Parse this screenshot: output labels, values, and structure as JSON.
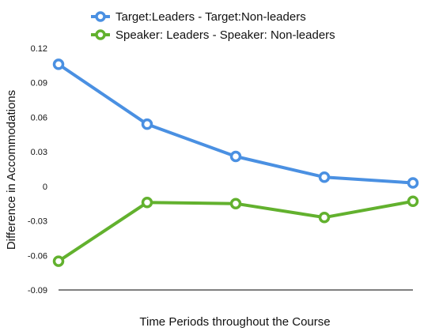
{
  "chart_data": {
    "type": "line",
    "title": "",
    "xlabel": "Time Periods throughout the Course",
    "ylabel": "Difference in Accommodations",
    "x": [
      1,
      2,
      3,
      4,
      5
    ],
    "ylim": [
      -0.09,
      0.12
    ],
    "yticks": [
      "0.12",
      "0.09",
      "0.06",
      "0.03",
      "0",
      "-0.03",
      "-0.06",
      "-0.09"
    ],
    "ytick_values": [
      0.12,
      0.09,
      0.06,
      0.03,
      0,
      -0.03,
      -0.06,
      -0.09
    ],
    "grid": false,
    "legend_position": "top",
    "series": [
      {
        "name": "Target:Leaders - Target:Non-leaders",
        "color": "#4a90e2",
        "values": [
          0.106,
          0.054,
          0.026,
          0.008,
          0.003
        ]
      },
      {
        "name": "Speaker: Leaders - Speaker: Non-leaders",
        "color": "#62b12e",
        "values": [
          -0.065,
          -0.014,
          -0.015,
          -0.027,
          -0.013
        ]
      }
    ]
  }
}
